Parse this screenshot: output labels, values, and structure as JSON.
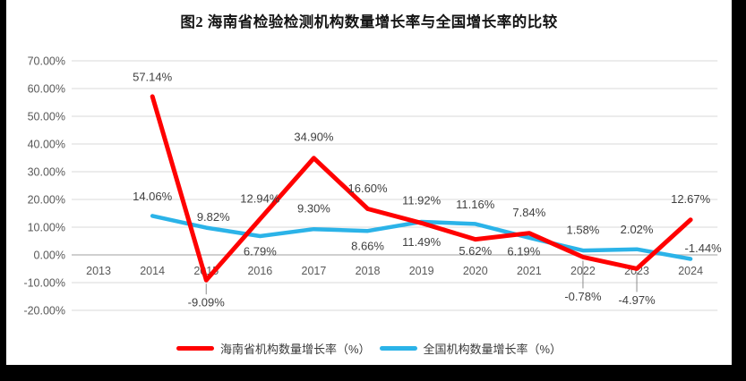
{
  "page": {
    "background": "#000000",
    "panel_background": "#ffffff"
  },
  "title": "图2 海南省检验检测机构数量增长率与全国增长率的比较",
  "colors": {
    "gridline": "#d9d9d9",
    "zero_line": "#bfbfbf",
    "axis_text": "#595959",
    "data_label_text": "#404040",
    "leader_line": "#8c8c8c",
    "hainan_series": "#ff0000",
    "national_series": "#2bb3e8"
  },
  "chart_data": {
    "type": "line",
    "title": "图2 海南省检验检测机构数量增长率与全国增长率的比较",
    "xlabel": "",
    "ylabel": "",
    "categories": [
      "2013",
      "2014",
      "2015",
      "2016",
      "2017",
      "2018",
      "2019",
      "2020",
      "2021",
      "2022",
      "2023",
      "2024"
    ],
    "series": [
      {
        "name": "海南省机构数量增长率（%）",
        "color": "#ff0000",
        "stroke_width": 5,
        "values": [
          null,
          57.14,
          -9.09,
          12.94,
          34.9,
          16.6,
          11.49,
          5.62,
          7.84,
          -0.78,
          -4.97,
          12.67
        ],
        "labels": [
          null,
          "57.14%",
          "-9.09%",
          "12.94%",
          "34.90%",
          "16.60%",
          "11.49%",
          "5.62%",
          "7.84%",
          "-0.78%",
          "-4.97%",
          "12.67%"
        ],
        "label_dy": [
          0,
          -22,
          25,
          -23,
          -24,
          -23,
          21,
          13,
          -23,
          44,
          35,
          -23
        ],
        "label_dx": [
          0,
          0,
          0,
          0,
          0,
          0,
          0,
          0,
          0,
          0,
          0,
          0
        ],
        "leader": [
          false,
          false,
          true,
          false,
          false,
          false,
          false,
          false,
          false,
          true,
          true,
          false
        ]
      },
      {
        "name": "全国机构数量增长率（%）",
        "color": "#2bb3e8",
        "stroke_width": 4.5,
        "values": [
          null,
          14.06,
          9.82,
          6.79,
          9.3,
          8.66,
          11.92,
          11.16,
          6.19,
          1.58,
          2.02,
          -1.44
        ],
        "labels": [
          null,
          "14.06%",
          "9.82%",
          "6.79%",
          "9.30%",
          "8.66%",
          "11.92%",
          "11.16%",
          "6.19%",
          "1.58%",
          "2.02%",
          "-1.44%"
        ],
        "label_dy": [
          0,
          -22,
          -12,
          17,
          -23,
          17,
          -24,
          -22,
          15,
          -23,
          -22,
          -12
        ],
        "label_dx": [
          0,
          0,
          8,
          0,
          0,
          0,
          0,
          0,
          -6,
          0,
          0,
          14
        ],
        "leader": [
          false,
          false,
          false,
          false,
          false,
          false,
          false,
          false,
          false,
          false,
          false,
          false
        ]
      }
    ],
    "ylim": [
      -20,
      70
    ],
    "ytick_step": 10,
    "ytick_labels": [
      "70.00%",
      "60.00%",
      "50.00%",
      "40.00%",
      "30.00%",
      "20.00%",
      "10.00%",
      "0.00%",
      "-10.00%",
      "-20.00%"
    ],
    "grid": true,
    "legend_position": "bottom"
  }
}
